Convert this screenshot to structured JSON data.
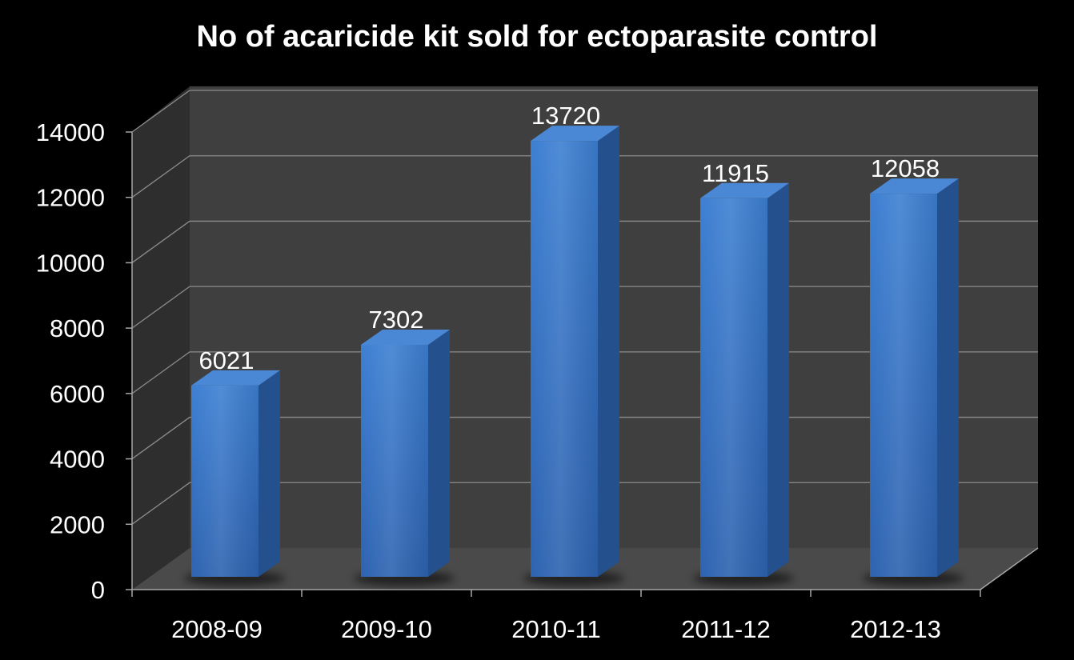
{
  "chart_data": {
    "type": "bar",
    "title": "No of acaricide kit sold for ectoparasite control",
    "categories": [
      "2008-09",
      "2009-10",
      "2010-11",
      "2011-12",
      "2012-13"
    ],
    "values": [
      6021,
      7302,
      13720,
      11915,
      12058
    ],
    "data_labels": [
      "6021",
      "7302",
      "13720",
      "11915",
      "12058"
    ],
    "y_ticks": [
      "0",
      "2000",
      "4000",
      "6000",
      "8000",
      "10000",
      "12000",
      "14000"
    ],
    "ylim": [
      0,
      14000
    ],
    "xlabel": "",
    "ylabel": "",
    "grid": true,
    "legend": "none",
    "colors": {
      "background": "#000000",
      "back_wall": "#3f3f3f",
      "side_wall": "#2e2e2e",
      "floor": "#4a4a4a",
      "gridline": "#8c8c8c",
      "axis": "#a6a6a6",
      "bar_front_top": "#3d7fd2",
      "bar_front_bottom": "#2d63b0",
      "bar_side": "#24508e",
      "bar_top": "#4a88d6",
      "text": "#ffffff"
    }
  }
}
